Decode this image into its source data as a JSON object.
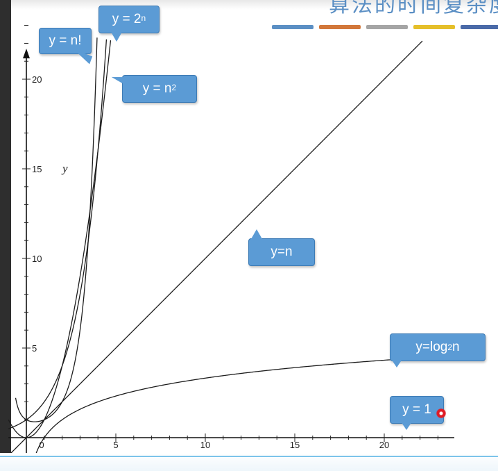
{
  "slide": {
    "title": "算法的时间复杂度",
    "title_color": "#5b8fc4",
    "title_bar_colors": [
      "#5b8fc4",
      "#d2773a",
      "#a5a5a5",
      "#e5bf2a",
      "#4a6aa8"
    ]
  },
  "bubbles": {
    "factorial": {
      "prefix": "y = n!",
      "sup": "",
      "sub": "",
      "suffix": ""
    },
    "exponential": {
      "prefix": "y = 2",
      "sup": "n",
      "sub": "",
      "suffix": ""
    },
    "quadratic": {
      "prefix": "y = n",
      "sup": "2",
      "sub": "",
      "suffix": ""
    },
    "linear": {
      "prefix": "y=n",
      "sup": "",
      "sub": "",
      "suffix": ""
    },
    "logarithmic": {
      "prefix": "y=log",
      "sup": "",
      "sub": "2",
      "suffix": "n"
    },
    "constant": {
      "prefix": "y = 1",
      "sup": "",
      "sub": "",
      "suffix": ""
    },
    "color": "#5b9bd5"
  },
  "chart_data": {
    "type": "line",
    "title": "",
    "xlabel": "",
    "ylabel": "y",
    "xlim": [
      -1,
      23
    ],
    "ylim": [
      -1.5,
      24
    ],
    "x_ticks": [
      0,
      5,
      10,
      15,
      20
    ],
    "x_tick_labels": [
      "0",
      "5",
      "10",
      "15",
      "20"
    ],
    "y_ticks": [
      5,
      10,
      15,
      20
    ],
    "y_tick_labels": [
      "5",
      "10",
      "15",
      "20"
    ],
    "grid": false,
    "series": [
      {
        "name": "y = n!",
        "function": "factorial"
      },
      {
        "name": "y = 2^n",
        "function": "exp2"
      },
      {
        "name": "y = n^2",
        "function": "square"
      },
      {
        "name": "y=n",
        "function": "identity"
      },
      {
        "name": "y=log2n",
        "function": "log2"
      },
      {
        "name": "y = 1",
        "function": "constant"
      }
    ]
  }
}
